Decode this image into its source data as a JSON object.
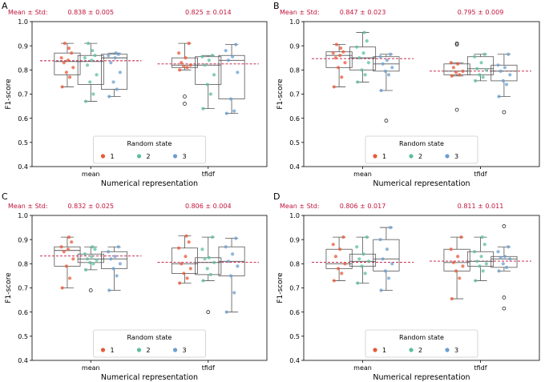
{
  "colors": {
    "mean_text": "#c0143c",
    "mean_line": "#c0143c",
    "box": "#555555",
    "outlier": "#222222",
    "state_1": "#e8593a",
    "state_2": "#5bbf9f",
    "state_3": "#6b9fcf"
  },
  "chart_data": [
    {
      "type": "box",
      "panel": "A",
      "ylabel": "F1-score",
      "xlabel": "Numerical representation",
      "ylim": [
        0.4,
        1.0
      ],
      "yticks": [
        "0.4",
        "0.5",
        "0.6",
        "0.7",
        "0.8",
        "0.9",
        "1.0"
      ],
      "categories": [
        "mean",
        "tfidf"
      ],
      "mean_label": "Mean ± Std:",
      "group_stats": [
        "0.838 ± 0.005",
        "0.825 ± 0.014"
      ],
      "group_means": [
        0.838,
        0.825
      ],
      "legend": {
        "title": "Random state",
        "labels": [
          "1",
          "2",
          "3"
        ],
        "position": "bottom-center"
      },
      "boxes": [
        {
          "group": 0,
          "state": 1,
          "whisker_low": 0.73,
          "q1": 0.78,
          "median": 0.835,
          "q3": 0.87,
          "whisker_high": 0.91,
          "outliers": [],
          "points": [
            0.73,
            0.77,
            0.79,
            0.81,
            0.83,
            0.84,
            0.85,
            0.87,
            0.89,
            0.91
          ]
        },
        {
          "group": 0,
          "state": 2,
          "whisker_low": 0.67,
          "q1": 0.74,
          "median": 0.835,
          "q3": 0.86,
          "whisker_high": 0.91,
          "outliers": [],
          "points": [
            0.67,
            0.7,
            0.75,
            0.78,
            0.82,
            0.84,
            0.85,
            0.86,
            0.88,
            0.91
          ]
        },
        {
          "group": 0,
          "state": 3,
          "whisker_low": 0.69,
          "q1": 0.72,
          "median": 0.85,
          "q3": 0.865,
          "whisker_high": 0.87,
          "outliers": [],
          "points": [
            0.69,
            0.72,
            0.75,
            0.79,
            0.83,
            0.85,
            0.86,
            0.865,
            0.87
          ]
        },
        {
          "group": 1,
          "state": 1,
          "whisker_low": 0.8,
          "q1": 0.81,
          "median": 0.82,
          "q3": 0.85,
          "whisker_high": 0.91,
          "outliers": [
            0.69,
            0.66
          ],
          "points": [
            0.8,
            0.81,
            0.815,
            0.82,
            0.83,
            0.85,
            0.87,
            0.91
          ]
        },
        {
          "group": 1,
          "state": 2,
          "whisker_low": 0.64,
          "q1": 0.74,
          "median": 0.82,
          "q3": 0.855,
          "whisker_high": 0.86,
          "outliers": [],
          "points": [
            0.64,
            0.7,
            0.74,
            0.78,
            0.82,
            0.84,
            0.855,
            0.86
          ]
        },
        {
          "group": 1,
          "state": 3,
          "whisker_low": 0.62,
          "q1": 0.68,
          "median": 0.84,
          "q3": 0.86,
          "whisker_high": 0.905,
          "outliers": [],
          "points": [
            0.62,
            0.63,
            0.68,
            0.79,
            0.84,
            0.855,
            0.88,
            0.905
          ]
        }
      ]
    },
    {
      "type": "box",
      "panel": "B",
      "ylabel": "F1-score",
      "xlabel": "Numerical representation",
      "ylim": [
        0.4,
        1.0
      ],
      "yticks": [
        "0.4",
        "0.5",
        "0.6",
        "0.7",
        "0.8",
        "0.9",
        "1.0"
      ],
      "categories": [
        "mean",
        "tfidf"
      ],
      "mean_label": "Mean ± Std:",
      "group_stats": [
        "0.847 ± 0.023",
        "0.795 ± 0.009"
      ],
      "group_means": [
        0.847,
        0.795
      ],
      "legend": {
        "title": "Random state",
        "labels": [
          "1",
          "2",
          "3"
        ],
        "position": "bottom-center"
      },
      "boxes": [
        {
          "group": 0,
          "state": 1,
          "whisker_low": 0.73,
          "q1": 0.81,
          "median": 0.86,
          "q3": 0.875,
          "whisker_high": 0.905,
          "outliers": [],
          "points": [
            0.73,
            0.77,
            0.81,
            0.83,
            0.85,
            0.86,
            0.87,
            0.875,
            0.89,
            0.905
          ]
        },
        {
          "group": 0,
          "state": 2,
          "whisker_low": 0.75,
          "q1": 0.8,
          "median": 0.85,
          "q3": 0.895,
          "whisker_high": 0.955,
          "outliers": [],
          "points": [
            0.75,
            0.78,
            0.8,
            0.83,
            0.85,
            0.87,
            0.895,
            0.92,
            0.955
          ]
        },
        {
          "group": 0,
          "state": 3,
          "whisker_low": 0.715,
          "q1": 0.795,
          "median": 0.825,
          "q3": 0.855,
          "whisker_high": 0.865,
          "outliers": [
            0.59
          ],
          "points": [
            0.715,
            0.78,
            0.795,
            0.81,
            0.825,
            0.84,
            0.855,
            0.865
          ]
        },
        {
          "group": 1,
          "state": 1,
          "whisker_low": 0.775,
          "q1": 0.78,
          "median": 0.795,
          "q3": 0.825,
          "whisker_high": 0.83,
          "outliers": [
            0.91,
            0.905,
            0.635
          ],
          "points": [
            0.775,
            0.78,
            0.79,
            0.795,
            0.81,
            0.825,
            0.83
          ]
        },
        {
          "group": 1,
          "state": 2,
          "whisker_low": 0.755,
          "q1": 0.78,
          "median": 0.805,
          "q3": 0.855,
          "whisker_high": 0.865,
          "outliers": [],
          "points": [
            0.755,
            0.77,
            0.78,
            0.8,
            0.805,
            0.83,
            0.855,
            0.865
          ]
        },
        {
          "group": 1,
          "state": 3,
          "whisker_low": 0.69,
          "q1": 0.755,
          "median": 0.795,
          "q3": 0.82,
          "whisker_high": 0.865,
          "outliers": [
            0.625
          ],
          "points": [
            0.69,
            0.74,
            0.755,
            0.78,
            0.795,
            0.81,
            0.82,
            0.865
          ]
        }
      ]
    },
    {
      "type": "box",
      "panel": "C",
      "ylabel": "F1-score",
      "xlabel": "Numerical representation",
      "ylim": [
        0.4,
        1.0
      ],
      "yticks": [
        "0.4",
        "0.5",
        "0.6",
        "0.7",
        "0.8",
        "0.9",
        "1.0"
      ],
      "categories": [
        "mean",
        "tfidf"
      ],
      "mean_label": "Mean ± Std:",
      "group_stats": [
        "0.832 ± 0.025",
        "0.806 ± 0.004"
      ],
      "group_means": [
        0.832,
        0.806
      ],
      "legend": {
        "title": "Random state",
        "labels": [
          "1",
          "2",
          "3"
        ],
        "position": "bottom-center"
      },
      "boxes": [
        {
          "group": 0,
          "state": 1,
          "whisker_low": 0.7,
          "q1": 0.79,
          "median": 0.855,
          "q3": 0.87,
          "whisker_high": 0.91,
          "outliers": [],
          "points": [
            0.7,
            0.74,
            0.79,
            0.82,
            0.85,
            0.86,
            0.87,
            0.89,
            0.91
          ]
        },
        {
          "group": 0,
          "state": 2,
          "whisker_low": 0.775,
          "q1": 0.805,
          "median": 0.82,
          "q3": 0.84,
          "whisker_high": 0.87,
          "outliers": [
            0.69
          ],
          "points": [
            0.775,
            0.8,
            0.805,
            0.815,
            0.82,
            0.83,
            0.84,
            0.86,
            0.87
          ]
        },
        {
          "group": 0,
          "state": 3,
          "whisker_low": 0.69,
          "q1": 0.78,
          "median": 0.82,
          "q3": 0.85,
          "whisker_high": 0.87,
          "outliers": [],
          "points": [
            0.69,
            0.75,
            0.78,
            0.8,
            0.82,
            0.83,
            0.85,
            0.87
          ]
        },
        {
          "group": 1,
          "state": 1,
          "whisker_low": 0.72,
          "q1": 0.76,
          "median": 0.8,
          "q3": 0.865,
          "whisker_high": 0.915,
          "outliers": [],
          "points": [
            0.72,
            0.74,
            0.76,
            0.78,
            0.8,
            0.83,
            0.865,
            0.89,
            0.915
          ]
        },
        {
          "group": 1,
          "state": 2,
          "whisker_low": 0.73,
          "q1": 0.755,
          "median": 0.805,
          "q3": 0.825,
          "whisker_high": 0.91,
          "outliers": [
            0.6
          ],
          "points": [
            0.73,
            0.755,
            0.78,
            0.805,
            0.82,
            0.825,
            0.86,
            0.91
          ]
        },
        {
          "group": 1,
          "state": 3,
          "whisker_low": 0.6,
          "q1": 0.75,
          "median": 0.81,
          "q3": 0.87,
          "whisker_high": 0.905,
          "outliers": [],
          "points": [
            0.6,
            0.68,
            0.75,
            0.79,
            0.81,
            0.84,
            0.87,
            0.905
          ]
        }
      ]
    },
    {
      "type": "box",
      "panel": "D",
      "ylabel": "F1-score",
      "xlabel": "Numerical representation",
      "ylim": [
        0.4,
        1.0
      ],
      "yticks": [
        "0.4",
        "0.5",
        "0.6",
        "0.7",
        "0.8",
        "0.9",
        "1.0"
      ],
      "categories": [
        "mean",
        "tfidf"
      ],
      "mean_label": "Mean ± Std:",
      "group_stats": [
        "0.806 ± 0.017",
        "0.811  ± 0.011"
      ],
      "group_means": [
        0.806,
        0.811
      ],
      "legend": {
        "title": "Random state",
        "labels": [
          "1",
          "2",
          "3"
        ],
        "position": "bottom-center"
      },
      "boxes": [
        {
          "group": 0,
          "state": 1,
          "whisker_low": 0.73,
          "q1": 0.78,
          "median": 0.8,
          "q3": 0.86,
          "whisker_high": 0.91,
          "outliers": [],
          "points": [
            0.73,
            0.76,
            0.78,
            0.8,
            0.83,
            0.86,
            0.88,
            0.91
          ]
        },
        {
          "group": 0,
          "state": 2,
          "whisker_low": 0.72,
          "q1": 0.79,
          "median": 0.81,
          "q3": 0.84,
          "whisker_high": 0.91,
          "outliers": [],
          "points": [
            0.72,
            0.76,
            0.79,
            0.81,
            0.82,
            0.84,
            0.87,
            0.91
          ]
        },
        {
          "group": 0,
          "state": 3,
          "whisker_low": 0.69,
          "q1": 0.77,
          "median": 0.82,
          "q3": 0.9,
          "whisker_high": 0.95,
          "outliers": [],
          "points": [
            0.69,
            0.74,
            0.77,
            0.8,
            0.82,
            0.86,
            0.9,
            0.95
          ]
        },
        {
          "group": 1,
          "state": 1,
          "whisker_low": 0.655,
          "q1": 0.77,
          "median": 0.805,
          "q3": 0.86,
          "whisker_high": 0.91,
          "outliers": [],
          "points": [
            0.655,
            0.74,
            0.77,
            0.79,
            0.805,
            0.83,
            0.86,
            0.91
          ]
        },
        {
          "group": 1,
          "state": 2,
          "whisker_low": 0.73,
          "q1": 0.79,
          "median": 0.81,
          "q3": 0.85,
          "whisker_high": 0.91,
          "outliers": [],
          "points": [
            0.73,
            0.77,
            0.79,
            0.8,
            0.81,
            0.83,
            0.85,
            0.88,
            0.91
          ]
        },
        {
          "group": 1,
          "state": 3,
          "whisker_low": 0.77,
          "q1": 0.785,
          "median": 0.82,
          "q3": 0.83,
          "whisker_high": 0.87,
          "outliers": [
            0.955,
            0.66,
            0.615
          ],
          "points": [
            0.77,
            0.785,
            0.8,
            0.82,
            0.825,
            0.83,
            0.85,
            0.87
          ]
        }
      ]
    }
  ]
}
